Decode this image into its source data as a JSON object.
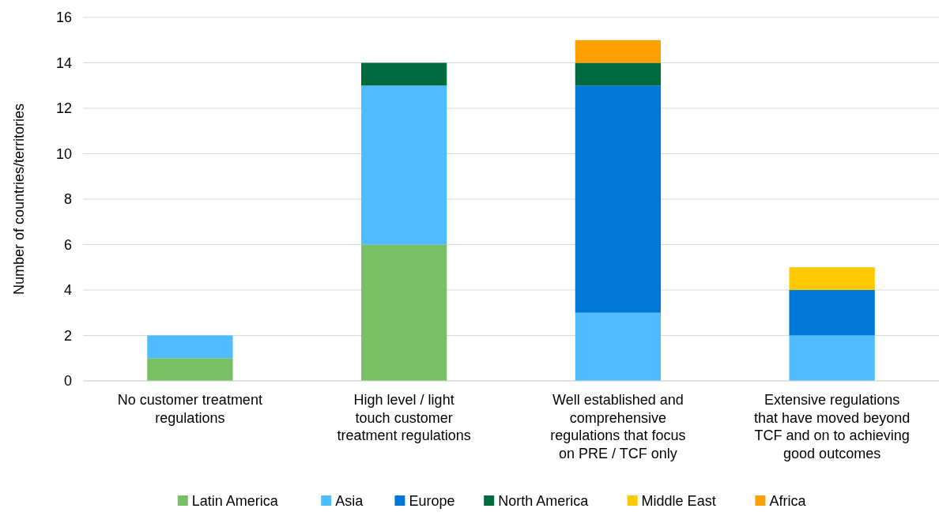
{
  "chart_data": {
    "type": "bar",
    "stacked": true,
    "ylabel": "Number of countries/territories",
    "categories": [
      "No customer treatment regulations",
      "High level / light touch customer treatment regulations",
      "Well established and comprehensive regulations that focus on PRE / TCF only",
      "Extensive regulations that have moved beyond TCF and on to achieving good outcomes"
    ],
    "series": [
      {
        "name": "Latin America",
        "color": "#77c063",
        "values": [
          1,
          6,
          null,
          null
        ]
      },
      {
        "name": "Asia",
        "color": "#4fbcff",
        "values": [
          1,
          7,
          3,
          2
        ]
      },
      {
        "name": "Europe",
        "color": "#0078d7",
        "values": [
          null,
          null,
          10,
          2
        ]
      },
      {
        "name": "North America",
        "color": "#006a3f",
        "values": [
          null,
          1,
          1,
          null
        ]
      },
      {
        "name": "Middle East",
        "color": "#ffc800",
        "values": [
          null,
          null,
          null,
          1
        ]
      },
      {
        "name": "Africa",
        "color": "#ffa000",
        "values": [
          null,
          null,
          1,
          null
        ]
      }
    ],
    "ylim": [
      0,
      16
    ],
    "yticks": [
      0,
      2,
      4,
      6,
      8,
      10,
      12,
      14,
      16
    ],
    "grid": "y",
    "legend": "bottom"
  }
}
